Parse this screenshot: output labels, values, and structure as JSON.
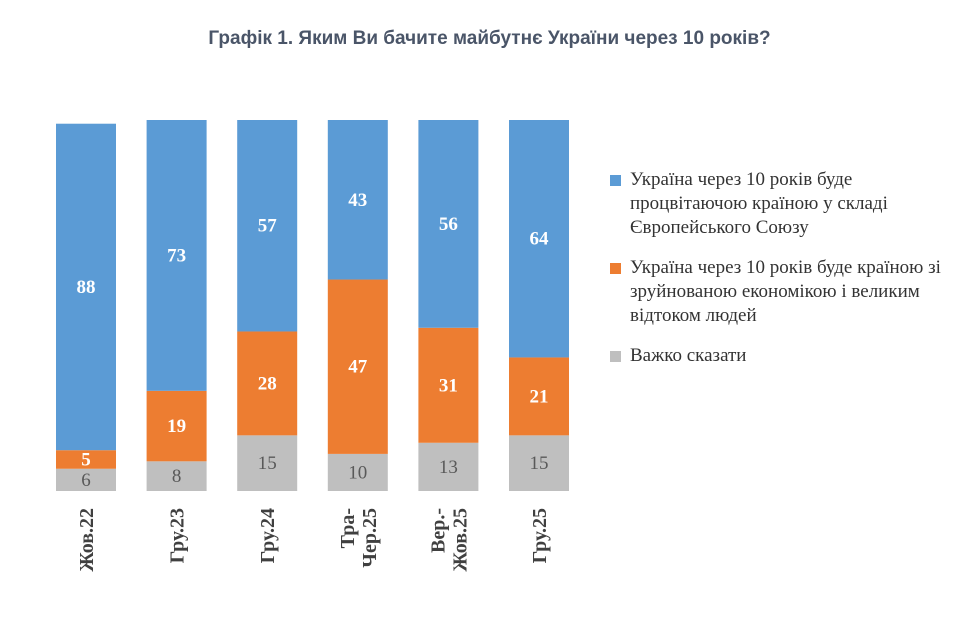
{
  "chart_data": {
    "type": "bar",
    "stacked": true,
    "percent": true,
    "title": "Графік 1. Яким Ви бачите майбутнє України через 10 років?",
    "categories": [
      "Жов.22",
      "Гру.23",
      "Гру.24",
      "Тра-Чер.25",
      "Вер.-Жов.25",
      "Гру.25"
    ],
    "category_lines": [
      [
        "Жов.22"
      ],
      [
        "Гру.23"
      ],
      [
        "Гру.24"
      ],
      [
        "Тра-",
        "Чер.25"
      ],
      [
        "Вер.-",
        "Жов.25"
      ],
      [
        "Гру.25"
      ]
    ],
    "series": [
      {
        "name": "Важко сказати",
        "values": [
          6,
          8,
          15,
          10,
          13,
          15
        ],
        "color": "#bfbfbf",
        "label_color": "#595959"
      },
      {
        "name": "Україна через 10 років буде країною зі зруйнованою економікою і великим відтоком людей",
        "values": [
          5,
          19,
          28,
          47,
          31,
          21
        ],
        "color": "#ed7d31",
        "label_color": "#ffffff"
      },
      {
        "name": "Україна через 10 років буде процвітаючою країною у складі Європейського Союзу",
        "values": [
          88,
          73,
          57,
          43,
          56,
          64
        ],
        "color": "#5b9bd5",
        "label_color": "#ffffff"
      }
    ],
    "legend": [
      {
        "label": "Україна через 10 років буде процвітаючою країною у складі Європейського Союзу",
        "color": "#5b9bd5"
      },
      {
        "label": "Україна через 10 років буде країною зі зруйнованою економікою і великим відтоком людей",
        "color": "#ed7d31"
      },
      {
        "label": "Важко сказати",
        "color": "#bfbfbf"
      }
    ],
    "legend_position": "right",
    "ylim": [
      0,
      100
    ]
  }
}
